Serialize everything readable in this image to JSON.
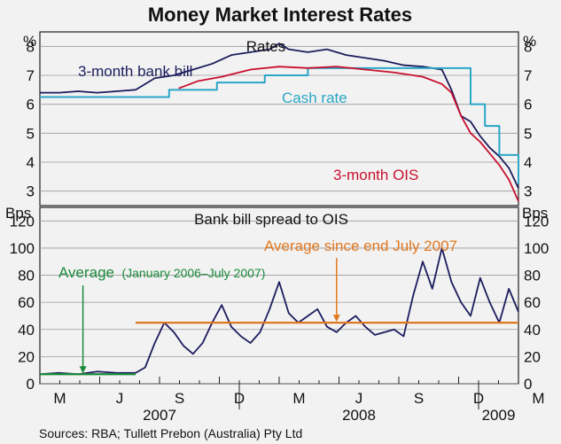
{
  "colors": {
    "background": "#f2f2f2",
    "bank_bill": "#1c1c5e",
    "cash_rate": "#2aa6c7",
    "ois": "#c8102e",
    "spread": "#1c1c5e",
    "avg_2006": "#1a8a3a",
    "avg_2007": "#e07820",
    "grid": "#9a9a9a",
    "frame": "#222222"
  },
  "chart_data": {
    "type": "line",
    "title": "Money Market Interest Rates",
    "source": "Sources: RBA; Tullett Prebon (Australia) Pty Ltd",
    "x_month_labels": [
      "M",
      "J",
      "S",
      "D",
      "M",
      "J",
      "S",
      "D",
      "M"
    ],
    "x_year_labels": [
      "2007",
      "2008",
      "2009"
    ],
    "x_range": [
      "2007-03",
      "2009-03"
    ],
    "panels": [
      {
        "title": "Rates",
        "y_unit": "%",
        "ylim": [
          2.5,
          8.5
        ],
        "y_ticks": [
          "3",
          "4",
          "5",
          "6",
          "7",
          "8"
        ],
        "grid": true,
        "series": [
          {
            "name": "3-month bank bill",
            "color_key": "bank_bill",
            "x": [
              0,
              0.04,
              0.08,
              0.12,
              0.16,
              0.2,
              0.24,
              0.28,
              0.32,
              0.36,
              0.4,
              0.44,
              0.48,
              0.5,
              0.52,
              0.56,
              0.6,
              0.64,
              0.68,
              0.72,
              0.76,
              0.8,
              0.84,
              0.86,
              0.88,
              0.9,
              0.92,
              0.94,
              0.96,
              0.98,
              1.0
            ],
            "values": [
              6.4,
              6.4,
              6.45,
              6.4,
              6.45,
              6.5,
              6.9,
              7.0,
              7.2,
              7.4,
              7.7,
              7.8,
              7.9,
              8.1,
              7.9,
              7.8,
              7.9,
              7.7,
              7.6,
              7.5,
              7.35,
              7.3,
              7.2,
              6.5,
              5.6,
              5.4,
              4.9,
              4.5,
              4.2,
              3.8,
              3.1
            ]
          },
          {
            "name": "Cash rate",
            "color_key": "cash_rate",
            "x": [
              0,
              0.2,
              0.27,
              0.37,
              0.47,
              0.56,
              0.87,
              0.9,
              0.93,
              0.96,
              0.985,
              1.0
            ],
            "values": [
              6.25,
              6.25,
              6.5,
              6.75,
              7.0,
              7.25,
              7.25,
              6.0,
              5.25,
              4.25,
              4.25,
              3.25
            ]
          },
          {
            "name": "3-month OIS",
            "color_key": "ois",
            "x": [
              0.29,
              0.33,
              0.38,
              0.44,
              0.5,
              0.56,
              0.62,
              0.68,
              0.74,
              0.8,
              0.84,
              0.86,
              0.88,
              0.9,
              0.92,
              0.94,
              0.96,
              0.98,
              1.0
            ],
            "values": [
              6.55,
              6.8,
              6.95,
              7.2,
              7.3,
              7.25,
              7.3,
              7.2,
              7.1,
              6.95,
              6.7,
              6.4,
              5.6,
              5.0,
              4.7,
              4.3,
              3.9,
              3.4,
              2.65
            ]
          }
        ],
        "annotations": [
          "3-month bank bill",
          "Cash rate",
          "3-month OIS"
        ]
      },
      {
        "title": "Bank bill spread to OIS",
        "y_unit": "Bps",
        "ylim": [
          0,
          130
        ],
        "y_ticks": [
          "0",
          "20",
          "40",
          "60",
          "80",
          "100",
          "120"
        ],
        "grid": true,
        "series": [
          {
            "name": "Bank bill spread to OIS",
            "color_key": "spread",
            "x": [
              0,
              0.04,
              0.08,
              0.12,
              0.16,
              0.2,
              0.22,
              0.24,
              0.26,
              0.28,
              0.3,
              0.32,
              0.34,
              0.36,
              0.38,
              0.4,
              0.42,
              0.44,
              0.46,
              0.48,
              0.5,
              0.52,
              0.54,
              0.56,
              0.58,
              0.6,
              0.62,
              0.64,
              0.66,
              0.68,
              0.7,
              0.72,
              0.74,
              0.76,
              0.78,
              0.8,
              0.82,
              0.84,
              0.86,
              0.88,
              0.9,
              0.92,
              0.94,
              0.96,
              0.98,
              1.0
            ],
            "values": [
              7,
              8,
              7,
              9,
              8,
              8,
              12,
              30,
              45,
              38,
              28,
              22,
              30,
              45,
              58,
              42,
              35,
              30,
              38,
              55,
              75,
              52,
              45,
              50,
              55,
              42,
              38,
              45,
              50,
              42,
              36,
              38,
              40,
              35,
              65,
              90,
              70,
              100,
              75,
              60,
              50,
              78,
              60,
              45,
              70,
              53
            ]
          }
        ],
        "reference_lines": [
          {
            "name": "Average (January 2006–July 2007)",
            "value": 7,
            "x_range": [
              0,
              0.2
            ],
            "color_key": "avg_2006"
          },
          {
            "name": "Average since end July 2007",
            "value": 45,
            "x_range": [
              0.2,
              1.0
            ],
            "color_key": "avg_2007"
          }
        ],
        "annotations": [
          "Average",
          "(January 2006–July 2007)",
          "Average since end July 2007"
        ]
      }
    ]
  }
}
